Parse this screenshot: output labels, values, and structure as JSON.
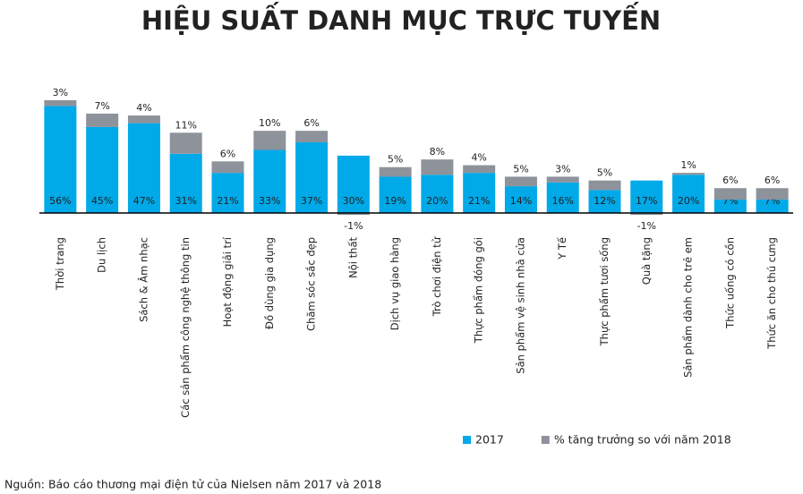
{
  "chart_data": {
    "type": "bar",
    "stacked": true,
    "title": "HIỆU SUẤT DANH MỤC TRỰC TUYẾN",
    "categories": [
      "Thời trang",
      "Du lịch",
      "Sách & Âm nhạc",
      "Các sản phẩm công nghệ thông tin",
      "Hoạt động giải trí",
      "Đồ dùng gia dụng",
      "Chăm sóc sắc đẹp",
      "Nội thất",
      "Dịch vụ giao hàng",
      "Trò chơi điện tử",
      "Thực phẩm đóng gói",
      "Sản phẩm vệ sinh nhà cửa",
      "Y Tế",
      "Thực phẩm tươi sống",
      "Quà tặng",
      "Sản phẩm dành cho trẻ em",
      "Thức uống có cồn",
      "Thức ăn cho thú cưng"
    ],
    "series": [
      {
        "name": "2017",
        "color": "#00a9e8",
        "values": [
          56,
          45,
          47,
          31,
          21,
          33,
          37,
          30,
          19,
          20,
          21,
          14,
          16,
          12,
          17,
          20,
          7,
          7
        ],
        "value_labels": [
          "56%",
          "45%",
          "47%",
          "31%",
          "21%",
          "33%",
          "37%",
          "30%",
          "19%",
          "20%",
          "21%",
          "14%",
          "16%",
          "12%",
          "17%",
          "20%",
          "7%",
          "7%"
        ]
      },
      {
        "name": "% tăng trưởng so với năm 2018",
        "color": "#8e929b",
        "values": [
          3,
          7,
          4,
          11,
          6,
          10,
          6,
          -1,
          5,
          8,
          4,
          5,
          3,
          5,
          -1,
          1,
          6,
          6
        ],
        "value_labels": [
          "3%",
          "7%",
          "4%",
          "11%",
          "6%",
          "10%",
          "6%",
          "-1%",
          "5%",
          "8%",
          "4%",
          "5%",
          "3%",
          "5%",
          "-1%",
          "1%",
          "6%",
          "6%"
        ]
      }
    ],
    "source": "Nguồn: Báo cáo thương mại điện tử của Nielsen năm 2017 và 2018"
  }
}
